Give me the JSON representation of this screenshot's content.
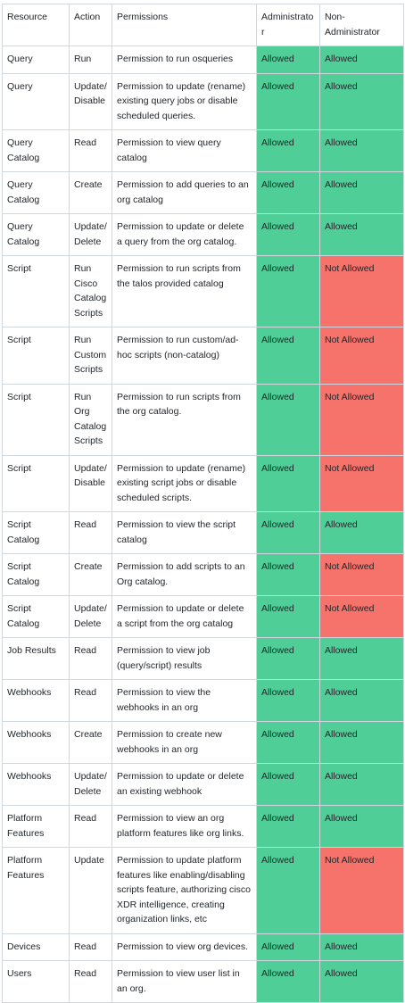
{
  "table": {
    "header": [
      "Resource",
      "Action",
      "Permissions",
      "Administrator",
      "Non-Administrator"
    ],
    "rows": [
      [
        "Query",
        "Run",
        "Permission to run osqueries",
        "Allowed",
        "Allowed"
      ],
      [
        "Query",
        "Update/ Disable",
        "Permission to update (rename) existing query jobs or disable scheduled queries.",
        "Allowed",
        "Allowed"
      ],
      [
        "Query Catalog",
        "Read",
        "Permission to view query catalog",
        "Allowed",
        "Allowed"
      ],
      [
        "Query Catalog",
        "Create",
        "Permission to add queries to an org catalog",
        "Allowed",
        "Allowed"
      ],
      [
        "Query Catalog",
        "Update/ Delete",
        "Permission to update or delete a query from the org catalog.",
        "Allowed",
        "Allowed"
      ],
      [
        "Script",
        "Run Cisco Catalog Scripts",
        "Permission to run scripts from the talos provided catalog",
        "Allowed",
        "Not Allowed"
      ],
      [
        "Script",
        "Run Custom Scripts",
        "Permission to run custom/ad-hoc scripts (non-catalog)",
        "Allowed",
        "Not Allowed"
      ],
      [
        "Script",
        "Run Org Catalog Scripts",
        "Permission to run scripts from the org catalog.",
        "Allowed",
        "Not Allowed"
      ],
      [
        "Script",
        "Update/ Disable",
        "Permission to update (rename) existing script jobs or disable scheduled scripts.",
        "Allowed",
        "Not Allowed"
      ],
      [
        "Script Catalog",
        "Read",
        "Permission to view the script catalog",
        "Allowed",
        "Allowed"
      ],
      [
        "Script Catalog",
        "Create",
        "Permission to add scripts to an Org catalog.",
        "Allowed",
        "Not Allowed"
      ],
      [
        "Script Catalog",
        "Update/ Delete",
        "Permission to update or delete a script from the org catalog",
        "Allowed",
        "Not Allowed"
      ],
      [
        "Job Results",
        "Read",
        "Permission to view job (query/script) results",
        "Allowed",
        "Allowed"
      ],
      [
        "Webhooks",
        "Read",
        "Permission to view the webhooks in an org",
        "Allowed",
        "Allowed"
      ],
      [
        "Webhooks",
        "Create",
        "Permission to create new webhooks in an org",
        "Allowed",
        "Allowed"
      ],
      [
        "Webhooks",
        "Update/ Delete",
        "Permission to update or delete an existing webhook",
        "Allowed",
        "Allowed"
      ],
      [
        "Platform Features",
        "Read",
        "Permission to view an org platform features like org links.",
        "Allowed",
        "Allowed"
      ],
      [
        "Platform Features",
        "Update",
        "Permission to update platform features like enabling/disabling scripts feature, authorizing cisco XDR intelligence, creating organization links, etc",
        "Allowed",
        "Not Allowed"
      ],
      [
        "Devices",
        "Read",
        "Permission to view org devices.",
        "Allowed",
        "Allowed"
      ],
      [
        "Users",
        "Read",
        "Permission to view user list in an org.",
        "Allowed",
        "Allowed"
      ]
    ]
  }
}
